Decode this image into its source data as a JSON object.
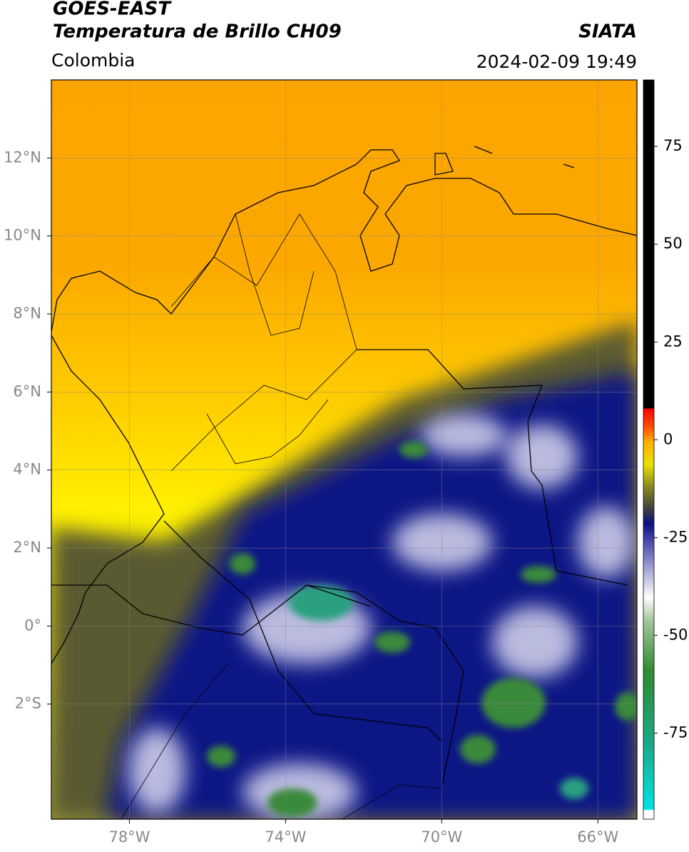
{
  "header": {
    "title": "GOES-EAST",
    "subtitle": "Temperatura de Brillo CH09",
    "source": "SIATA",
    "region": "Colombia",
    "datetime": "2024-02-09 19:49"
  },
  "map": {
    "xlim": [
      -80,
      -65
    ],
    "ylim": [
      -4.95,
      14
    ],
    "xticks": [
      {
        "value": -78,
        "label": "78°W"
      },
      {
        "value": -74,
        "label": "74°W"
      },
      {
        "value": -70,
        "label": "70°W"
      },
      {
        "value": -66,
        "label": "66°W"
      }
    ],
    "yticks": [
      {
        "value": 12,
        "label": "12°N"
      },
      {
        "value": 10,
        "label": "10°N"
      },
      {
        "value": 8,
        "label": "8°N"
      },
      {
        "value": 6,
        "label": "6°N"
      },
      {
        "value": 4,
        "label": "4°N"
      },
      {
        "value": 2,
        "label": "2°N"
      },
      {
        "value": 0,
        "label": "0°"
      },
      {
        "value": -2,
        "label": "2°S"
      }
    ],
    "grid": true
  },
  "colorbar": {
    "lim": [
      -97,
      92
    ],
    "ticks": [
      75,
      50,
      25,
      0,
      -25,
      -50,
      -75
    ]
  }
}
